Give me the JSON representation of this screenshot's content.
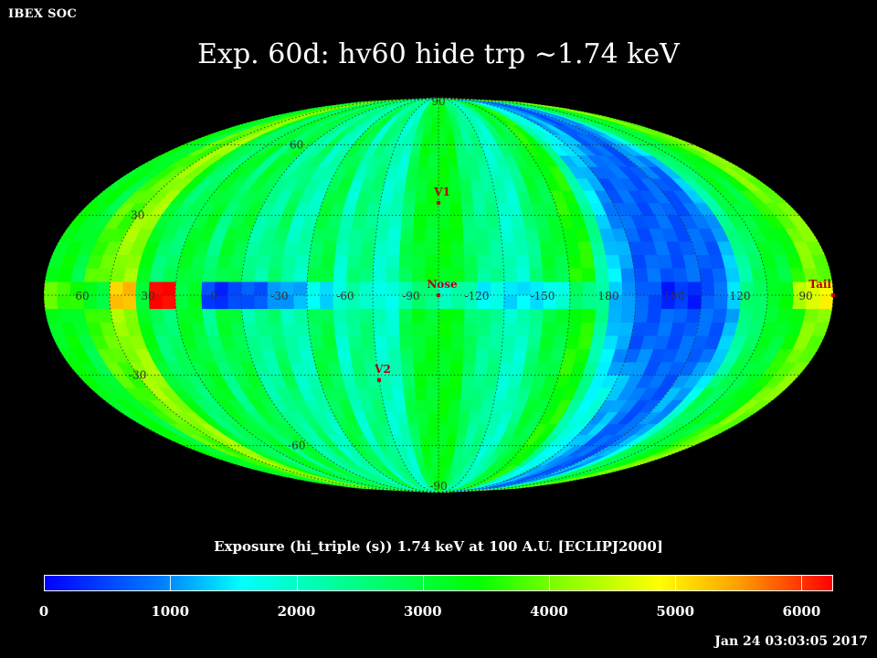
{
  "header": {
    "brand": "IBEX SOC",
    "title": "Exp.   60d: hv60 hide trp ~1.74 keV",
    "timestamp": "Jan 24 03:03:05 2017"
  },
  "colorbar": {
    "title": "Exposure (hi_triple (s))  1.74 keV at 100 A.U. [ECLIPJ2000]",
    "ticks": [
      "0",
      "1000",
      "2000",
      "3000",
      "4000",
      "5000",
      "6000"
    ],
    "min": 0,
    "max": 6250,
    "stops": [
      "#0000ff",
      "#0080ff",
      "#00ffff",
      "#00ff80",
      "#00ff00",
      "#80ff00",
      "#ffff00",
      "#ffa000",
      "#ff0000"
    ]
  },
  "chart_data": {
    "type": "heatmap",
    "projection": "Mollweide (ecliptic J2000), centered on Nose",
    "equator_labels": [
      "60",
      "30",
      "0",
      "-30",
      "-60",
      "-90",
      "-120",
      "-150",
      "180",
      "150",
      "120",
      "90"
    ],
    "latitude_labels": [
      "90",
      "60",
      "30",
      "-30",
      "-60",
      "-90"
    ],
    "markers": [
      {
        "name": "V1",
        "lon": -105,
        "lat": 35
      },
      {
        "name": "Nose",
        "lon": -105,
        "lat": 0
      },
      {
        "name": "V2",
        "lon": -75,
        "lat": -32
      },
      {
        "name": "Tail",
        "lon": 75,
        "lat": 0
      }
    ],
    "exposure_by_meridian_band": [
      {
        "lon_center": 70,
        "value": 3300
      },
      {
        "lon_center": 60,
        "value": 3000
      },
      {
        "lon_center": 50,
        "value": 3800
      },
      {
        "lon_center": 40,
        "value": 4200
      },
      {
        "lon_center": 30,
        "value": 3200
      },
      {
        "lon_center": 20,
        "value": 2700
      },
      {
        "lon_center": 10,
        "value": 3100
      },
      {
        "lon_center": 0,
        "value": 2500
      },
      {
        "lon_center": -10,
        "value": 3000
      },
      {
        "lon_center": -20,
        "value": 2300
      },
      {
        "lon_center": -30,
        "value": 2700
      },
      {
        "lon_center": -40,
        "value": 2100
      },
      {
        "lon_center": -50,
        "value": 2900
      },
      {
        "lon_center": -60,
        "value": 2000
      },
      {
        "lon_center": -70,
        "value": 2500
      },
      {
        "lon_center": -80,
        "value": 2000
      },
      {
        "lon_center": -90,
        "value": 2800
      },
      {
        "lon_center": -100,
        "value": 3200
      },
      {
        "lon_center": -110,
        "value": 3300
      },
      {
        "lon_center": -120,
        "value": 2700
      },
      {
        "lon_center": -130,
        "value": 2400
      },
      {
        "lon_center": -140,
        "value": 2000
      },
      {
        "lon_center": -150,
        "value": 2500
      },
      {
        "lon_center": -160,
        "value": 3000
      },
      {
        "lon_center": -170,
        "value": 3500
      },
      {
        "lon_center": 180,
        "value": 2300
      },
      {
        "lon_center": 170,
        "value": 1700
      },
      {
        "lon_center": 160,
        "value": 1200
      },
      {
        "lon_center": 150,
        "value": 800
      },
      {
        "lon_center": 140,
        "value": 700
      },
      {
        "lon_center": 130,
        "value": 1100
      },
      {
        "lon_center": 120,
        "value": 1800
      },
      {
        "lon_center": 110,
        "value": 2800
      },
      {
        "lon_center": 100,
        "value": 3100
      },
      {
        "lon_center": 90,
        "value": 3500
      },
      {
        "lon_center": 80,
        "value": 4000
      }
    ],
    "ecliptic_strip": [
      {
        "lon": 80,
        "value": 4800
      },
      {
        "lon": 70,
        "value": 3800
      },
      {
        "lon": 60,
        "value": 3600
      },
      {
        "lon": 50,
        "value": 3100
      },
      {
        "lon": 40,
        "value": 5200
      },
      {
        "lon": 30,
        "value": 3200
      },
      {
        "lon": 20,
        "value": 6200
      },
      {
        "lon": 10,
        "value": 3100
      },
      {
        "lon": 0,
        "value": 500
      },
      {
        "lon": -10,
        "value": 400
      },
      {
        "lon": -20,
        "value": 700
      },
      {
        "lon": -30,
        "value": 900
      },
      {
        "lon": -40,
        "value": 1200
      },
      {
        "lon": -50,
        "value": 1500
      },
      {
        "lon": -60,
        "value": 1800
      },
      {
        "lon": -70,
        "value": 2100
      },
      {
        "lon": -80,
        "value": 1700
      },
      {
        "lon": -90,
        "value": 2300
      },
      {
        "lon": -100,
        "value": 2500
      },
      {
        "lon": -110,
        "value": 2100
      },
      {
        "lon": -120,
        "value": 2200
      },
      {
        "lon": -130,
        "value": 1600
      },
      {
        "lon": -140,
        "value": 1500
      },
      {
        "lon": -150,
        "value": 1300
      },
      {
        "lon": -160,
        "value": 1800
      },
      {
        "lon": -170,
        "value": 2600
      },
      {
        "lon": 180,
        "value": 2200
      },
      {
        "lon": 170,
        "value": 1200
      },
      {
        "lon": 160,
        "value": 600
      },
      {
        "lon": 150,
        "value": 300
      },
      {
        "lon": 140,
        "value": 300
      },
      {
        "lon": 130,
        "value": 700
      },
      {
        "lon": 120,
        "value": 1500
      },
      {
        "lon": 110,
        "value": 2600
      },
      {
        "lon": 100,
        "value": 3300
      },
      {
        "lon": 90,
        "value": 4300
      }
    ],
    "low_exposure_region": {
      "lon_range": [
        110,
        180
      ],
      "lat_range": [
        -35,
        60
      ],
      "value": 700
    },
    "grid": true
  }
}
